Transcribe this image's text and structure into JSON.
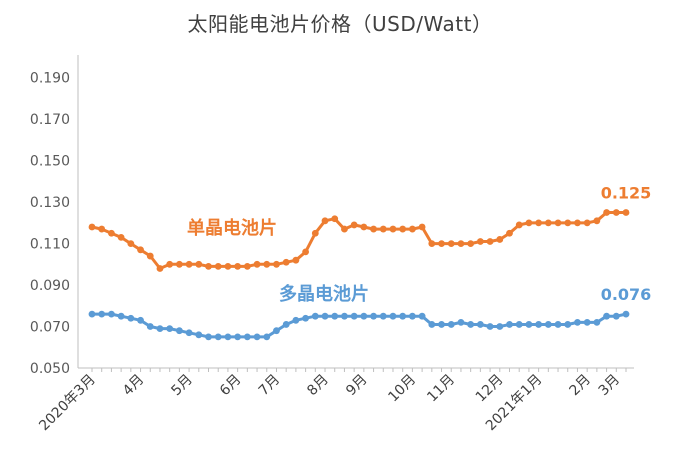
{
  "chart_data": {
    "type": "line",
    "title": "太阳能电池片价格（USD/Watt）",
    "xlabel": "",
    "ylabel": "",
    "ylim": [
      0.05,
      0.2
    ],
    "yticks": [
      0.05,
      0.07,
      0.09,
      0.11,
      0.13,
      0.15,
      0.17,
      0.19
    ],
    "ytick_labels": [
      "0.050",
      "0.070",
      "0.090",
      "0.110",
      "0.130",
      "0.150",
      "0.170",
      "0.190"
    ],
    "grid": false,
    "legend": "none",
    "x_count": 56,
    "x_tick_labels": [
      {
        "i": 0,
        "label": "2020年3月"
      },
      {
        "i": 5,
        "label": "4月"
      },
      {
        "i": 10,
        "label": "5月"
      },
      {
        "i": 15,
        "label": "6月"
      },
      {
        "i": 19,
        "label": "7月"
      },
      {
        "i": 24,
        "label": "8月"
      },
      {
        "i": 28,
        "label": "9月"
      },
      {
        "i": 33,
        "label": "10月"
      },
      {
        "i": 37,
        "label": "11月"
      },
      {
        "i": 42,
        "label": "12月"
      },
      {
        "i": 46,
        "label": "2021年1月"
      },
      {
        "i": 51,
        "label": "2月"
      },
      {
        "i": 54,
        "label": "3月"
      }
    ],
    "series": [
      {
        "name": "单晶电池片",
        "color": "#ED7D31",
        "end_label": "0.125",
        "values": [
          0.118,
          0.117,
          0.115,
          0.113,
          0.11,
          0.107,
          0.104,
          0.098,
          0.1,
          0.1,
          0.1,
          0.1,
          0.099,
          0.099,
          0.099,
          0.099,
          0.099,
          0.1,
          0.1,
          0.1,
          0.101,
          0.102,
          0.106,
          0.115,
          0.121,
          0.122,
          0.117,
          0.119,
          0.118,
          0.117,
          0.117,
          0.117,
          0.117,
          0.117,
          0.118,
          0.11,
          0.11,
          0.11,
          0.11,
          0.11,
          0.111,
          0.111,
          0.112,
          0.115,
          0.119,
          0.12,
          0.12,
          0.12,
          0.12,
          0.12,
          0.12,
          0.12,
          0.121,
          0.125,
          0.125,
          0.125
        ]
      },
      {
        "name": "多晶电池片",
        "color": "#5B9BD5",
        "end_label": "0.076",
        "values": [
          0.076,
          0.076,
          0.076,
          0.075,
          0.074,
          0.073,
          0.07,
          0.069,
          0.069,
          0.068,
          0.067,
          0.066,
          0.065,
          0.065,
          0.065,
          0.065,
          0.065,
          0.065,
          0.065,
          0.068,
          0.071,
          0.073,
          0.074,
          0.075,
          0.075,
          0.075,
          0.075,
          0.075,
          0.075,
          0.075,
          0.075,
          0.075,
          0.075,
          0.075,
          0.075,
          0.071,
          0.071,
          0.071,
          0.072,
          0.071,
          0.071,
          0.07,
          0.07,
          0.071,
          0.071,
          0.071,
          0.071,
          0.071,
          0.071,
          0.071,
          0.072,
          0.072,
          0.072,
          0.075,
          0.075,
          0.076
        ]
      }
    ]
  }
}
